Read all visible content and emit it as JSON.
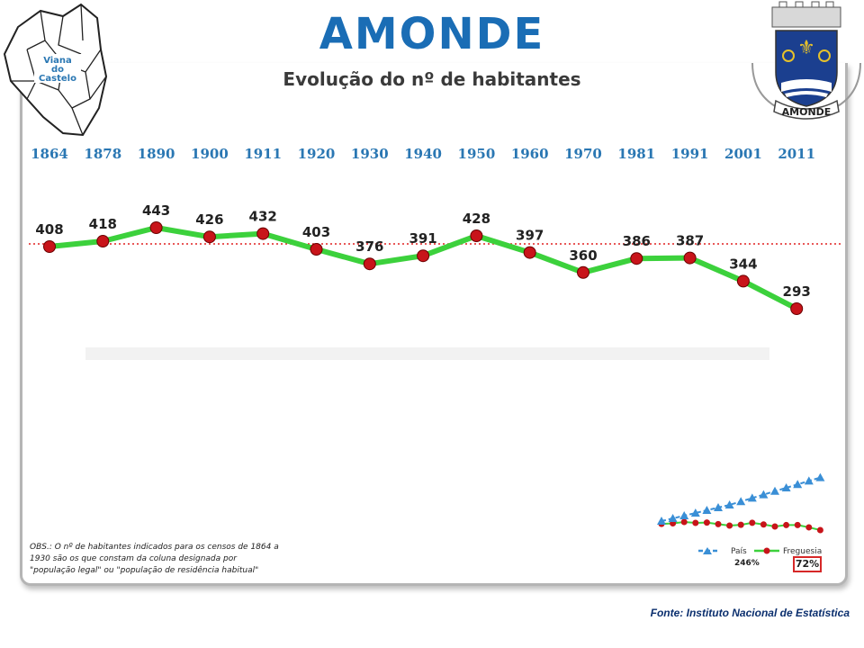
{
  "header": {
    "title": "AMONDE",
    "subtitle": "Evolução do nº de habitantes"
  },
  "map": {
    "label_line1": "Viana",
    "label_line2": "do",
    "label_line3": "Castelo"
  },
  "crest": {
    "label": "AMONDE"
  },
  "chart_data": {
    "type": "line",
    "categories": [
      "1864",
      "1878",
      "1890",
      "1900",
      "1911",
      "1920",
      "1930",
      "1940",
      "1950",
      "1960",
      "1970",
      "1981",
      "1991",
      "2001",
      "2011"
    ],
    "series": [
      {
        "name": "Freguesia",
        "values": [
          408,
          418,
          443,
          426,
          432,
          403,
          376,
          391,
          428,
          397,
          360,
          386,
          387,
          344,
          293
        ],
        "color": "#3cd13c",
        "marker_color": "#c8141a"
      }
    ],
    "reference_line": {
      "color": "#e02020",
      "style": "dotted"
    },
    "mini_chart": {
      "legend": [
        {
          "name": "País",
          "color": "#3a8fd6",
          "style": "dashed-triangle"
        },
        {
          "name": "Freguesia",
          "color": "#3cd13c",
          "style": "solid-circle"
        }
      ],
      "pais_percent": "246%",
      "freguesia_percent": "72%"
    }
  },
  "notes": {
    "obs": "OBS.: O nº de habitantes indicados para os censos de 1864 a 1930 são os que constam da coluna designada por \"população legal\" ou \"população de residência habitual\""
  },
  "footer": {
    "source": "Fonte: Instituto Nacional de Estatística"
  }
}
